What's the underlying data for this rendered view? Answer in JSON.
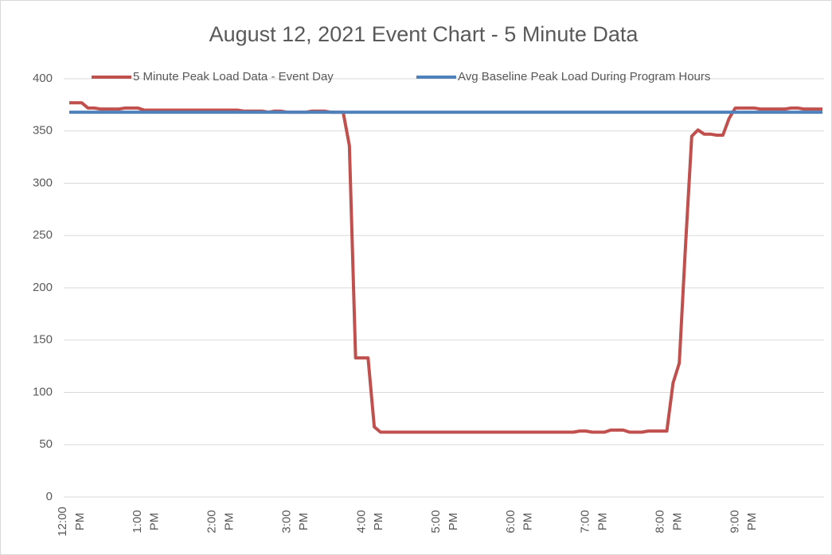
{
  "chart_data": {
    "type": "line",
    "title": "August 12, 2021 Event Chart - 5 Minute Data",
    "categories": [
      "12:00 PM",
      null,
      null,
      null,
      null,
      null,
      null,
      null,
      null,
      null,
      null,
      null,
      "1:00 PM",
      null,
      null,
      null,
      null,
      null,
      null,
      null,
      null,
      null,
      null,
      null,
      "2:00 PM",
      null,
      null,
      null,
      null,
      null,
      null,
      null,
      null,
      null,
      null,
      null,
      "3:00 PM",
      null,
      null,
      null,
      null,
      null,
      null,
      null,
      null,
      null,
      null,
      null,
      "4:00 PM",
      null,
      null,
      null,
      null,
      null,
      null,
      null,
      null,
      null,
      null,
      null,
      "5:00 PM",
      null,
      null,
      null,
      null,
      null,
      null,
      null,
      null,
      null,
      null,
      null,
      "6:00 PM",
      null,
      null,
      null,
      null,
      null,
      null,
      null,
      null,
      null,
      null,
      null,
      "7:00 PM",
      null,
      null,
      null,
      null,
      null,
      null,
      null,
      null,
      null,
      null,
      null,
      "8:00 PM",
      null,
      null,
      null,
      null,
      null,
      null,
      null,
      null,
      null,
      null,
      null,
      "9:00 PM",
      null,
      null,
      null,
      null,
      null,
      null,
      null,
      null,
      null,
      null,
      null,
      null,
      null
    ],
    "series": [
      {
        "name": "5 Minute Peak Load Data - Event Day",
        "color": "#c0504d",
        "values": [
          377,
          377,
          377,
          372,
          372,
          371,
          371,
          371,
          371,
          372,
          372,
          372,
          370,
          370,
          370,
          370,
          370,
          370,
          370,
          370,
          370,
          370,
          370,
          370,
          370,
          370,
          370,
          370,
          369,
          369,
          369,
          369,
          368,
          369,
          369,
          368,
          368,
          368,
          368,
          369,
          369,
          369,
          368,
          368,
          368,
          336,
          133,
          133,
          133,
          67,
          62,
          62,
          62,
          62,
          62,
          62,
          62,
          62,
          62,
          62,
          62,
          62,
          62,
          62,
          62,
          62,
          62,
          62,
          62,
          62,
          62,
          62,
          62,
          62,
          62,
          62,
          62,
          62,
          62,
          62,
          62,
          62,
          63,
          63,
          62,
          62,
          62,
          64,
          64,
          64,
          62,
          62,
          62,
          63,
          63,
          63,
          63,
          109,
          128,
          240,
          345,
          351,
          347,
          347,
          346,
          346,
          362,
          372,
          372,
          372,
          372,
          371,
          371,
          371,
          371,
          371,
          372,
          372,
          371,
          371,
          371,
          371
        ]
      },
      {
        "name": "Avg Baseline Peak Load During Program Hours",
        "color": "#4f81bd",
        "values": [
          368,
          368,
          368,
          368,
          368,
          368,
          368,
          368,
          368,
          368,
          368,
          368,
          368,
          368,
          368,
          368,
          368,
          368,
          368,
          368,
          368,
          368,
          368,
          368,
          368,
          368,
          368,
          368,
          368,
          368,
          368,
          368,
          368,
          368,
          368,
          368,
          368,
          368,
          368,
          368,
          368,
          368,
          368,
          368,
          368,
          368,
          368,
          368,
          368,
          368,
          368,
          368,
          368,
          368,
          368,
          368,
          368,
          368,
          368,
          368,
          368,
          368,
          368,
          368,
          368,
          368,
          368,
          368,
          368,
          368,
          368,
          368,
          368,
          368,
          368,
          368,
          368,
          368,
          368,
          368,
          368,
          368,
          368,
          368,
          368,
          368,
          368,
          368,
          368,
          368,
          368,
          368,
          368,
          368,
          368,
          368,
          368,
          368,
          368,
          368,
          368,
          368,
          368,
          368,
          368,
          368,
          368,
          368,
          368,
          368,
          368,
          368,
          368,
          368,
          368,
          368,
          368,
          368,
          368,
          368,
          368,
          368
        ]
      }
    ],
    "ylim": [
      0,
      400
    ],
    "yticks": [
      0,
      50,
      100,
      150,
      200,
      250,
      300,
      350,
      400
    ],
    "grid": true
  }
}
